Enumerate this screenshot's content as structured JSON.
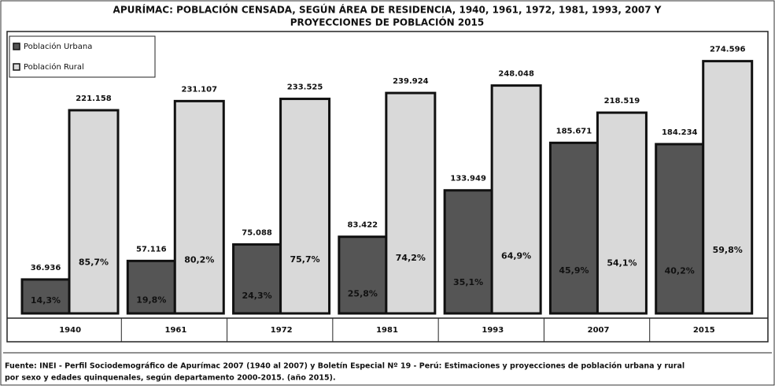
{
  "chart_data": {
    "type": "bar",
    "title": [
      "APURÍMAC: POBLACIÓN CENSADA, SEGÚN ÁREA DE RESIDENCIA, 1940, 1961, 1972, 1981, 1993, 2007 Y",
      "PROYECCIONES DE POBLACIÓN 2015"
    ],
    "categories": [
      "1940",
      "1961",
      "1972",
      "1981",
      "1993",
      "2007",
      "2015"
    ],
    "series": [
      {
        "name": "Población Urbana",
        "color": "#555555",
        "values": [
          36936,
          57116,
          75088,
          83422,
          133949,
          185671,
          184234
        ],
        "value_labels": [
          "36.936",
          "57.116",
          "75.088",
          "83.422",
          "133.949",
          "185.671",
          "184.234"
        ],
        "percent_labels": [
          "14,3%",
          "19,8%",
          "24,3%",
          "25,8%",
          "35,1%",
          "45,9%",
          "40,2%"
        ]
      },
      {
        "name": "Población Rural",
        "color": "#d9d9d9",
        "values": [
          221158,
          231107,
          233525,
          239924,
          248048,
          218519,
          274596
        ],
        "value_labels": [
          "221.158",
          "231.107",
          "233.525",
          "239.924",
          "248.048",
          "218.519",
          "274.596"
        ],
        "percent_labels": [
          "85,7%",
          "80,2%",
          "75,7%",
          "74,2%",
          "64,9%",
          "54,1%",
          "59,8%"
        ]
      }
    ],
    "ylim": [
      0,
      300000
    ],
    "legend": "top-left",
    "source": [
      "Fuente: INEI - Perfil Sociodemográfico de Apurímac 2007 (1940 al 2007) y Boletín Especial Nº 19 - Perú: Estimaciones y proyecciones de población urbana y rural",
      "por sexo y edades quinquenales, según departamento 2000-2015. (año 2015)."
    ]
  }
}
